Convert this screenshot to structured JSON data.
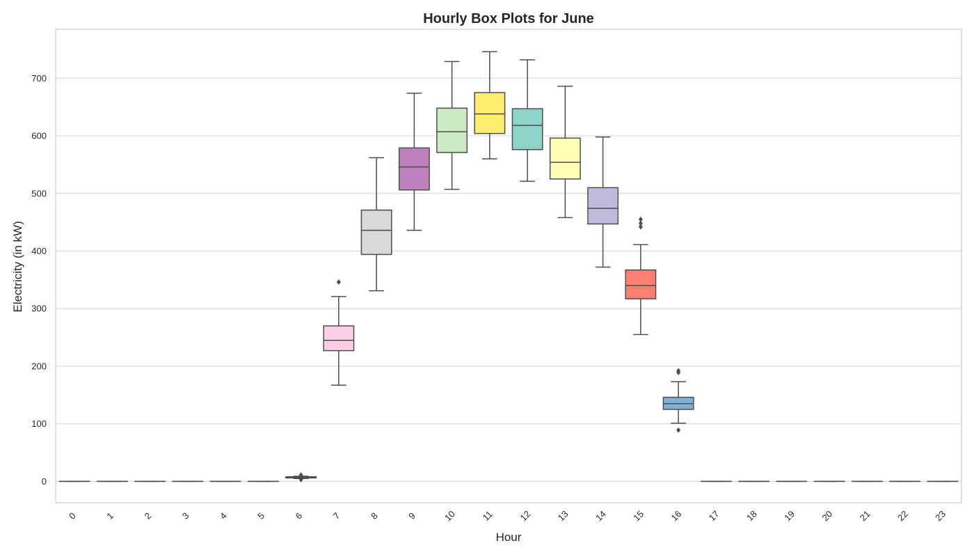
{
  "chart_data": {
    "type": "box",
    "title": "Hourly Box Plots for June",
    "xlabel": "Hour",
    "ylabel": "Electricity (in kW)",
    "ylim": [
      -37,
      785
    ],
    "yticks": [
      0,
      100,
      200,
      300,
      400,
      500,
      600,
      700
    ],
    "grid": "horizontal",
    "categories": [
      "0",
      "1",
      "2",
      "3",
      "4",
      "5",
      "6",
      "7",
      "8",
      "9",
      "10",
      "11",
      "12",
      "13",
      "14",
      "15",
      "16",
      "17",
      "18",
      "19",
      "20",
      "21",
      "22",
      "23"
    ],
    "boxes": [
      {
        "hour": "0",
        "whisker_low": 0,
        "q1": 0,
        "median": 0,
        "q3": 0,
        "whisker_high": 0,
        "outliers": [],
        "color": "#8dd3c7"
      },
      {
        "hour": "1",
        "whisker_low": 0,
        "q1": 0,
        "median": 0,
        "q3": 0,
        "whisker_high": 0,
        "outliers": [],
        "color": "#ffffb3"
      },
      {
        "hour": "2",
        "whisker_low": 0,
        "q1": 0,
        "median": 0,
        "q3": 0,
        "whisker_high": 0,
        "outliers": [],
        "color": "#bebada"
      },
      {
        "hour": "3",
        "whisker_low": 0,
        "q1": 0,
        "median": 0,
        "q3": 0,
        "whisker_high": 0,
        "outliers": [],
        "color": "#fb8072"
      },
      {
        "hour": "4",
        "whisker_low": 0,
        "q1": 0,
        "median": 0,
        "q3": 0,
        "whisker_high": 0,
        "outliers": [],
        "color": "#80b1d3"
      },
      {
        "hour": "5",
        "whisker_low": 0,
        "q1": 0,
        "median": 0,
        "q3": 0,
        "whisker_high": 0,
        "outliers": [],
        "color": "#fdb462"
      },
      {
        "hour": "6",
        "whisker_low": 5,
        "q1": 6,
        "median": 7,
        "q3": 8,
        "whisker_high": 9,
        "outliers": [
          3,
          11
        ],
        "color": "#b3de69"
      },
      {
        "hour": "7",
        "whisker_low": 167,
        "q1": 227,
        "median": 245,
        "q3": 270,
        "whisker_high": 321,
        "outliers": [
          346
        ],
        "color": "#fccde5"
      },
      {
        "hour": "8",
        "whisker_low": 331,
        "q1": 394,
        "median": 436,
        "q3": 471,
        "whisker_high": 562,
        "outliers": [],
        "color": "#d9d9d9"
      },
      {
        "hour": "9",
        "whisker_low": 436,
        "q1": 506,
        "median": 546,
        "q3": 579,
        "whisker_high": 674,
        "outliers": [],
        "color": "#bc80bd"
      },
      {
        "hour": "10",
        "whisker_low": 507,
        "q1": 571,
        "median": 607,
        "q3": 648,
        "whisker_high": 729,
        "outliers": [],
        "color": "#ccebc5"
      },
      {
        "hour": "11",
        "whisker_low": 560,
        "q1": 604,
        "median": 638,
        "q3": 675,
        "whisker_high": 746,
        "outliers": [],
        "color": "#ffed6f"
      },
      {
        "hour": "12",
        "whisker_low": 521,
        "q1": 576,
        "median": 618,
        "q3": 647,
        "whisker_high": 732,
        "outliers": [],
        "color": "#8dd3c7"
      },
      {
        "hour": "13",
        "whisker_low": 458,
        "q1": 525,
        "median": 554,
        "q3": 596,
        "whisker_high": 686,
        "outliers": [],
        "color": "#ffffb3"
      },
      {
        "hour": "14",
        "whisker_low": 372,
        "q1": 447,
        "median": 474,
        "q3": 510,
        "whisker_high": 598,
        "outliers": [],
        "color": "#bebada"
      },
      {
        "hour": "15",
        "whisker_low": 255,
        "q1": 317,
        "median": 340,
        "q3": 367,
        "whisker_high": 411,
        "outliers": [
          442,
          448,
          455
        ],
        "color": "#fb8072"
      },
      {
        "hour": "16",
        "whisker_low": 101,
        "q1": 125,
        "median": 135,
        "q3": 146,
        "whisker_high": 173,
        "outliers": [
          89,
          189,
          192
        ],
        "color": "#80b1d3"
      },
      {
        "hour": "17",
        "whisker_low": 0,
        "q1": 0,
        "median": 0,
        "q3": 0,
        "whisker_high": 0,
        "outliers": [],
        "color": "#fdb462"
      },
      {
        "hour": "18",
        "whisker_low": 0,
        "q1": 0,
        "median": 0,
        "q3": 0,
        "whisker_high": 0,
        "outliers": [],
        "color": "#b3de69"
      },
      {
        "hour": "19",
        "whisker_low": 0,
        "q1": 0,
        "median": 0,
        "q3": 0,
        "whisker_high": 0,
        "outliers": [],
        "color": "#fccde5"
      },
      {
        "hour": "20",
        "whisker_low": 0,
        "q1": 0,
        "median": 0,
        "q3": 0,
        "whisker_high": 0,
        "outliers": [],
        "color": "#d9d9d9"
      },
      {
        "hour": "21",
        "whisker_low": 0,
        "q1": 0,
        "median": 0,
        "q3": 0,
        "whisker_high": 0,
        "outliers": [],
        "color": "#bc80bd"
      },
      {
        "hour": "22",
        "whisker_low": 0,
        "q1": 0,
        "median": 0,
        "q3": 0,
        "whisker_high": 0,
        "outliers": [],
        "color": "#ccebc5"
      },
      {
        "hour": "23",
        "whisker_low": 0,
        "q1": 0,
        "median": 0,
        "q3": 0,
        "whisker_high": 0,
        "outliers": [],
        "color": "#ffed6f"
      }
    ]
  }
}
